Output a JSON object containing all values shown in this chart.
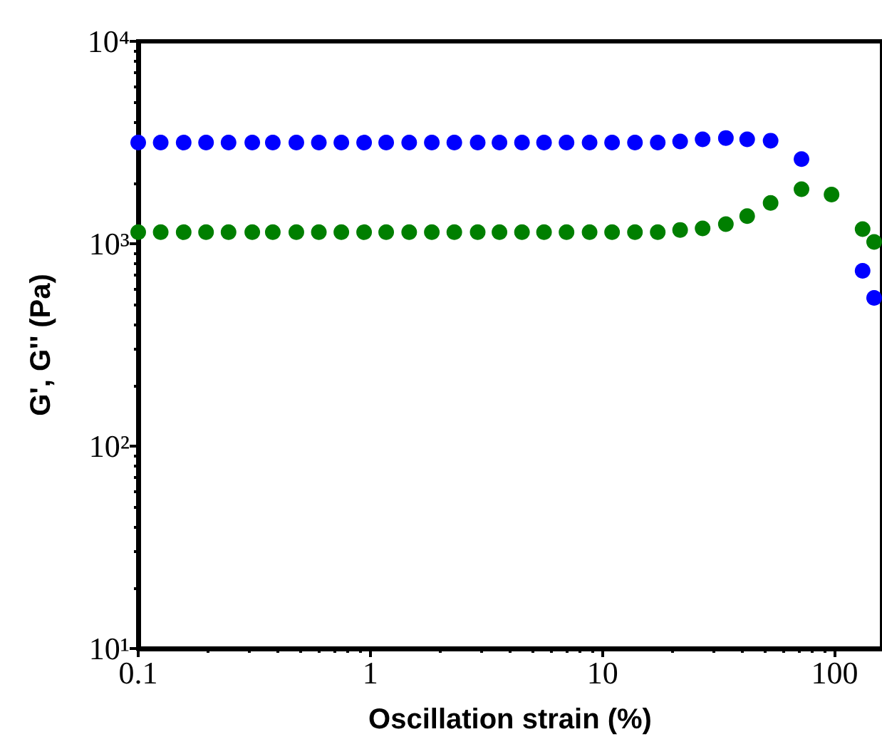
{
  "chart_data": {
    "type": "scatter",
    "xlabel": "Oscillation strain (%)",
    "ylabel": "G', G'' (Pa)",
    "log": "xy",
    "xlim": [
      0.1,
      160
    ],
    "ylim": [
      10,
      10000
    ],
    "xticks": [
      0.1,
      1,
      10,
      100
    ],
    "yticks": [
      {
        "value": 10,
        "label": "10¹"
      },
      {
        "value": 100,
        "label": "10²"
      },
      {
        "value": 1000,
        "label": "10³"
      },
      {
        "value": 10000,
        "label": "10⁴"
      }
    ],
    "x": [
      0.1,
      0.125,
      0.157,
      0.196,
      0.245,
      0.31,
      0.38,
      0.48,
      0.6,
      0.75,
      0.94,
      1.17,
      1.47,
      1.84,
      2.3,
      2.9,
      3.6,
      4.5,
      5.6,
      7,
      8.8,
      11,
      13.8,
      17.3,
      21.6,
      27,
      34,
      42,
      53,
      72,
      97,
      132,
      148
    ],
    "series": [
      {
        "color": "#0000ff",
        "values": [
          3160,
          3160,
          3160,
          3160,
          3160,
          3160,
          3160,
          3160,
          3160,
          3160,
          3160,
          3160,
          3160,
          3160,
          3160,
          3160,
          3160,
          3160,
          3160,
          3160,
          3160,
          3160,
          3160,
          3160,
          3200,
          3280,
          3330,
          3280,
          3230,
          2620,
          null,
          735,
          540
        ]
      },
      {
        "color": "#007f00",
        "values": [
          1140,
          1140,
          1140,
          1140,
          1140,
          1140,
          1140,
          1140,
          1140,
          1140,
          1140,
          1140,
          1140,
          1140,
          1140,
          1140,
          1140,
          1140,
          1140,
          1140,
          1140,
          1140,
          1140,
          1140,
          1170,
          1190,
          1250,
          1370,
          1590,
          1860,
          1750,
          1180,
          1020
        ]
      }
    ],
    "marker": "circle",
    "grid": false
  }
}
